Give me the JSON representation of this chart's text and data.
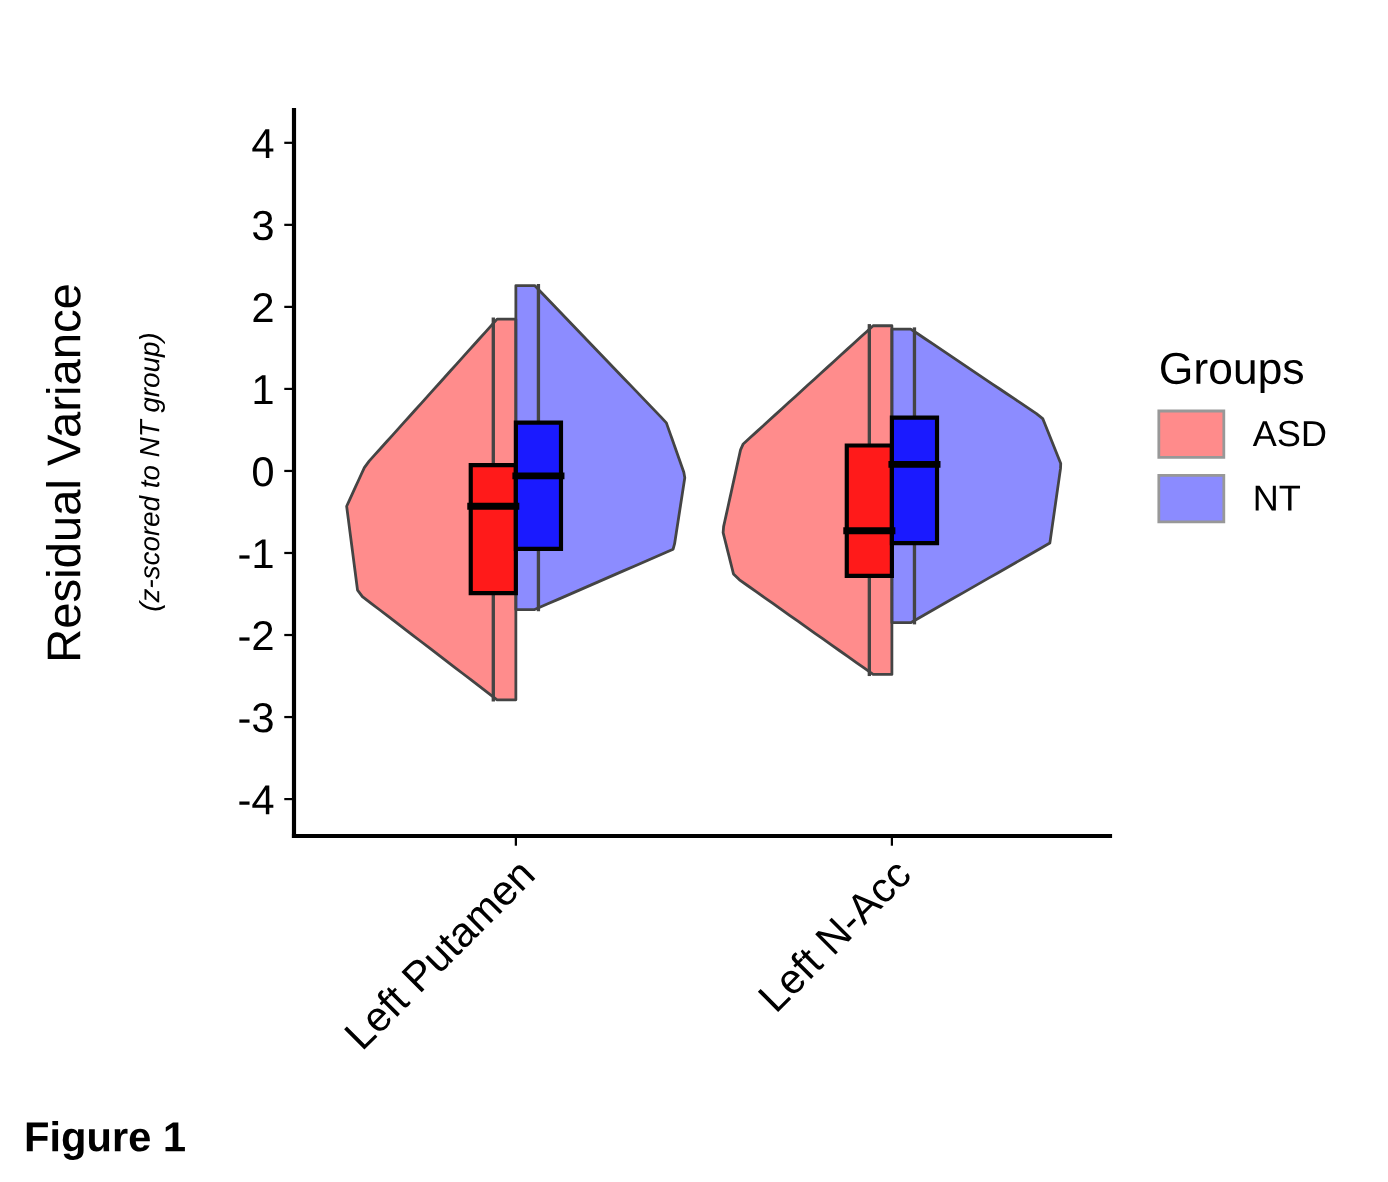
{
  "chart_data": {
    "type": "box",
    "ylabel": "Residual Variance",
    "annotations": [
      "(z-scored to NT group)",
      "Figure 1"
    ],
    "categories": [
      "Left Putamen",
      "Left N-Acc"
    ],
    "series": [
      {
        "name": "ASD",
        "color": "#ff1a1a",
        "boxes": [
          {
            "low": -2.79,
            "q1": -1.49,
            "median": -0.43,
            "q3": 0.07,
            "high": 1.85
          },
          {
            "low": -2.48,
            "q1": -1.28,
            "median": -0.73,
            "q3": 0.31,
            "high": 1.77
          }
        ]
      },
      {
        "name": "NT",
        "color": "#1a1aff",
        "boxes": [
          {
            "low": -1.69,
            "q1": -0.95,
            "median": -0.06,
            "q3": 0.59,
            "high": 2.26
          },
          {
            "low": -1.85,
            "q1": -0.88,
            "median": 0.08,
            "q3": 0.65,
            "high": 1.73
          }
        ]
      }
    ],
    "legend_title": "Groups",
    "legend": "right",
    "grid": false,
    "ylim": [
      -4.45,
      4.4
    ],
    "yticks": [
      -4,
      -3,
      -2,
      -1,
      0,
      1,
      2,
      3,
      4
    ]
  }
}
